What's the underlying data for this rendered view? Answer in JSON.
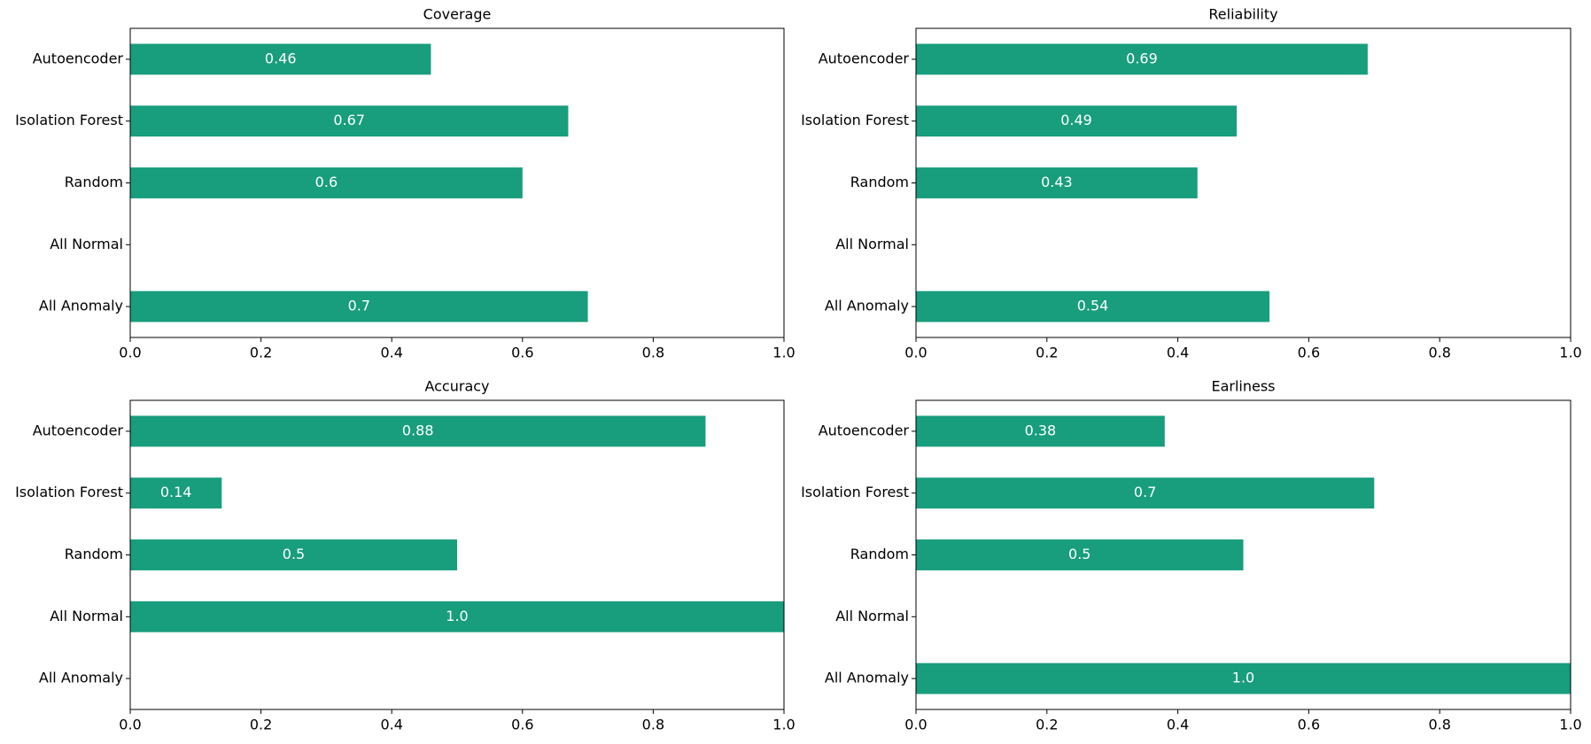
{
  "chart_data": [
    {
      "type": "barh",
      "title": "Coverage",
      "categories": [
        "Autoencoder",
        "Isolation Forest",
        "Random",
        "All Normal",
        "All Anomaly"
      ],
      "values": [
        0.46,
        0.67,
        0.6,
        null,
        0.7
      ],
      "color": "#189d7d",
      "xlim": [
        0,
        1
      ],
      "xticks": [
        {
          "value": 0,
          "label": "0.0"
        },
        0.2,
        0.4,
        0.6,
        0.8,
        {
          "value": 1,
          "label": "1.0"
        }
      ]
    },
    {
      "type": "barh",
      "title": "Reliability",
      "categories": [
        "Autoencoder",
        "Isolation Forest",
        "Random",
        "All Normal",
        "All Anomaly"
      ],
      "values": [
        0.69,
        0.49,
        0.43,
        null,
        0.54
      ],
      "color": "#189d7d",
      "xlim": [
        0,
        1
      ],
      "xticks": [
        {
          "value": 0,
          "label": "0.0"
        },
        0.2,
        0.4,
        0.6,
        0.8,
        {
          "value": 1,
          "label": "1.0"
        }
      ]
    },
    {
      "type": "barh",
      "title": "Accuracy",
      "categories": [
        "Autoencoder",
        "Isolation Forest",
        "Random",
        "All Normal",
        "All Anomaly"
      ],
      "values": [
        0.88,
        0.14,
        0.5,
        1,
        null
      ],
      "value_labels": [
        "0.88",
        "0.14",
        "0.5",
        "1.0",
        null
      ],
      "color": "#189d7d",
      "xlim": [
        0,
        1
      ],
      "xticks": [
        {
          "value": 0,
          "label": "0.0"
        },
        0.2,
        0.4,
        0.6,
        0.8,
        {
          "value": 1,
          "label": "1.0"
        }
      ]
    },
    {
      "type": "barh",
      "title": "Earliness",
      "categories": [
        "Autoencoder",
        "Isolation Forest",
        "Random",
        "All Normal",
        "All Anomaly"
      ],
      "values": [
        0.38,
        0.7,
        0.5,
        null,
        1
      ],
      "value_labels": [
        "0.38",
        "0.7",
        "0.5",
        null,
        "1.0"
      ],
      "color": "#189d7d",
      "xlim": [
        0,
        1
      ],
      "xticks": [
        {
          "value": 0,
          "label": "0.0"
        },
        0.2,
        0.4,
        0.6,
        0.8,
        {
          "value": 1,
          "label": "1.0"
        }
      ]
    }
  ]
}
